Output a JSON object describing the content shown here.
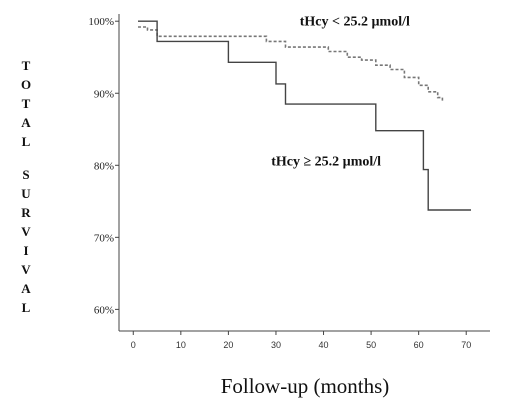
{
  "chart_data": {
    "type": "line",
    "step": true,
    "title": "",
    "xlabel": "Follow-up (months)",
    "ylabel": "TOTAL SURVIVAL",
    "xlim": [
      -3,
      75
    ],
    "ylim": [
      57,
      101
    ],
    "x_ticks": [
      0,
      10,
      20,
      30,
      40,
      50,
      60,
      70
    ],
    "y_ticks": [
      {
        "value": 100,
        "label": "100%"
      },
      {
        "value": 90,
        "label": "90%"
      },
      {
        "value": 80,
        "label": "80%"
      },
      {
        "value": 70,
        "label": "70%"
      },
      {
        "value": 60,
        "label": "60%"
      }
    ],
    "grid": false,
    "series": [
      {
        "name": "tHcy < 25.2 µmol/l",
        "style": "dashed",
        "color": "#777777",
        "points": [
          [
            1,
            99.2
          ],
          [
            3,
            99.2
          ],
          [
            3,
            98.8
          ],
          [
            5,
            98.8
          ],
          [
            5,
            97.9
          ],
          [
            28,
            97.9
          ],
          [
            28,
            97.2
          ],
          [
            32,
            97.2
          ],
          [
            32,
            96.4
          ],
          [
            41,
            96.4
          ],
          [
            41,
            95.8
          ],
          [
            45,
            95.8
          ],
          [
            45,
            95.0
          ],
          [
            48,
            95.0
          ],
          [
            48,
            94.6
          ],
          [
            51,
            94.6
          ],
          [
            51,
            93.9
          ],
          [
            54,
            93.9
          ],
          [
            54,
            93.3
          ],
          [
            57,
            93.3
          ],
          [
            57,
            92.2
          ],
          [
            60,
            92.2
          ],
          [
            60,
            91.1
          ],
          [
            62,
            91.1
          ],
          [
            62,
            90.2
          ],
          [
            64,
            90.2
          ],
          [
            64,
            89.4
          ],
          [
            65,
            89.4
          ],
          [
            65,
            88.9
          ]
        ]
      },
      {
        "name": "tHcy ≥ 25.2 µmol/l",
        "style": "solid",
        "color": "#444444",
        "points": [
          [
            1,
            100
          ],
          [
            5,
            100
          ],
          [
            5,
            97.2
          ],
          [
            20,
            97.2
          ],
          [
            20,
            94.3
          ],
          [
            30,
            94.3
          ],
          [
            30,
            91.3
          ],
          [
            32,
            91.3
          ],
          [
            32,
            88.5
          ],
          [
            51,
            88.5
          ],
          [
            51,
            84.8
          ],
          [
            61,
            84.8
          ],
          [
            61,
            79.4
          ],
          [
            62,
            79.4
          ],
          [
            62,
            73.8
          ],
          [
            71,
            73.8
          ]
        ]
      }
    ],
    "annotations": [
      {
        "text": "tHcy < 25.2 µmol/l",
        "x": 35,
        "y": 99.4
      },
      {
        "text": "tHcy ≥ 25.2 µmol/l",
        "x": 29,
        "y": 80.0
      }
    ]
  }
}
